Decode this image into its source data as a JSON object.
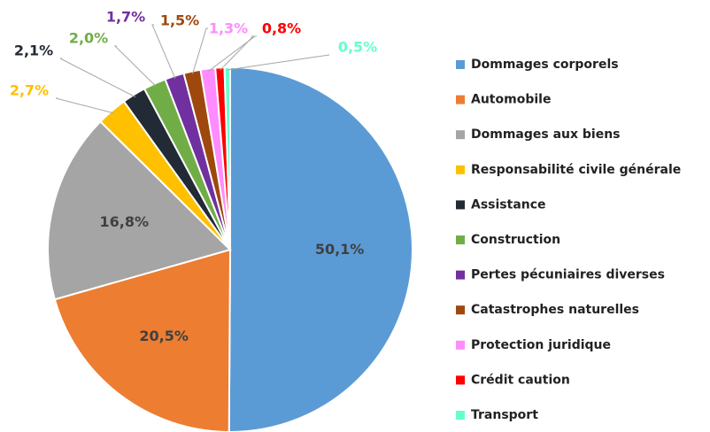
{
  "chart_data": {
    "type": "pie",
    "categories": [
      "Dommages corporels",
      "Automobile",
      "Dommages aux biens",
      "Responsabilité civile générale",
      "Assistance",
      "Construction",
      "Pertes pécuniaires diverses",
      "Catastrophes naturelles",
      "Protection juridique",
      "Crédit caution",
      "Transport"
    ],
    "values": [
      50.1,
      20.5,
      16.8,
      2.7,
      2.1,
      2.0,
      1.7,
      1.5,
      1.3,
      0.8,
      0.5
    ],
    "value_labels": [
      "50,1%",
      "20,5%",
      "16,8%",
      "2,7%",
      "2,1%",
      "2,0%",
      "1,7%",
      "1,5%",
      "1,3%",
      "0,8%",
      "0,5%"
    ],
    "colors": [
      "#5b9bd5",
      "#ed7d31",
      "#a5a5a5",
      "#ffc000",
      "#222a35",
      "#70ad47",
      "#7030a0",
      "#9e480e",
      "#ff8cff",
      "#ff0000",
      "#66ffcc"
    ]
  }
}
